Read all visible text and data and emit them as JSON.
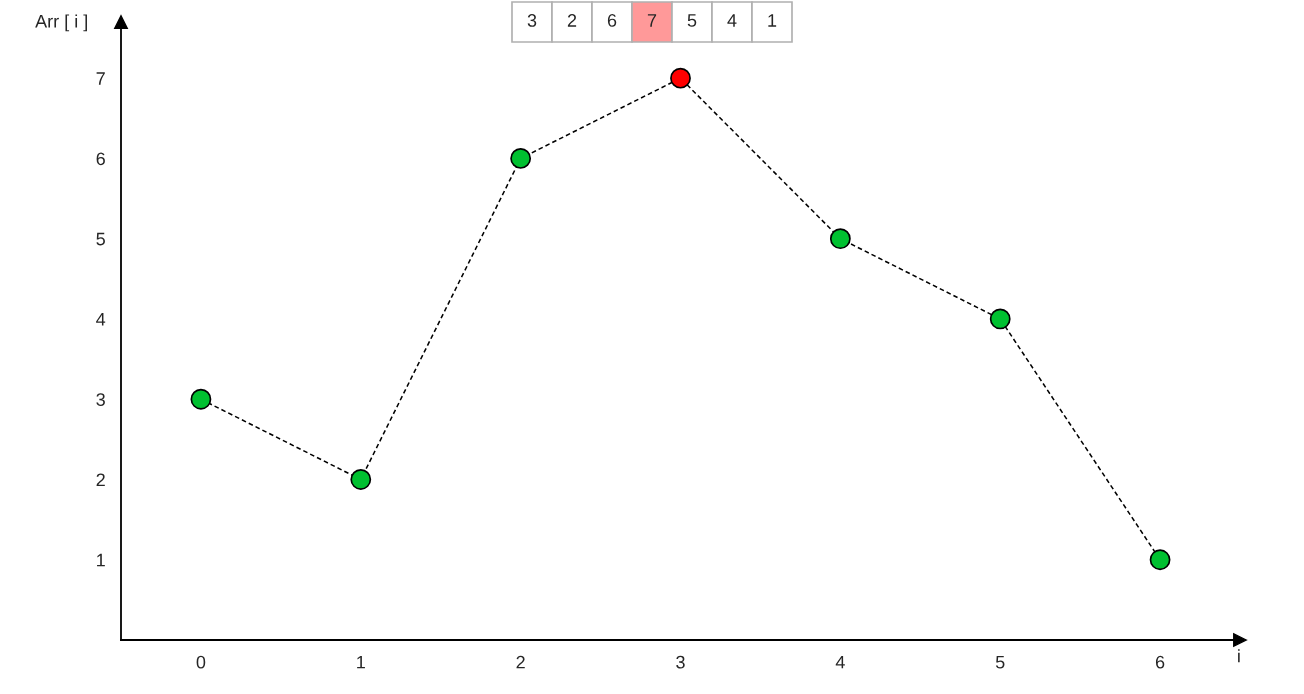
{
  "chart_data": {
    "type": "line",
    "xlabel": "i",
    "ylabel": "Arr [ i ]",
    "x": [
      0,
      1,
      2,
      3,
      4,
      5,
      6
    ],
    "series": [
      {
        "color": "#000000",
        "values": [
          3,
          2,
          6,
          7,
          5,
          4,
          1
        ],
        "colors": [
          "#00c030",
          "#00c030",
          "#00c030",
          "#ff0000",
          "#00c030",
          "#00c030",
          "#00c030"
        ]
      }
    ],
    "marker": "circle",
    "line_style": "dashed",
    "xlim": [
      -0.5,
      6.5
    ],
    "ylim": [
      0,
      7.7
    ],
    "xticks": [
      0,
      1,
      2,
      3,
      4,
      5,
      6
    ],
    "yticks": [
      1,
      2,
      3,
      4,
      5,
      6,
      7
    ],
    "grid": false,
    "annotations": [
      "3",
      "2",
      "6",
      "7",
      "5",
      "4",
      "1"
    ]
  }
}
